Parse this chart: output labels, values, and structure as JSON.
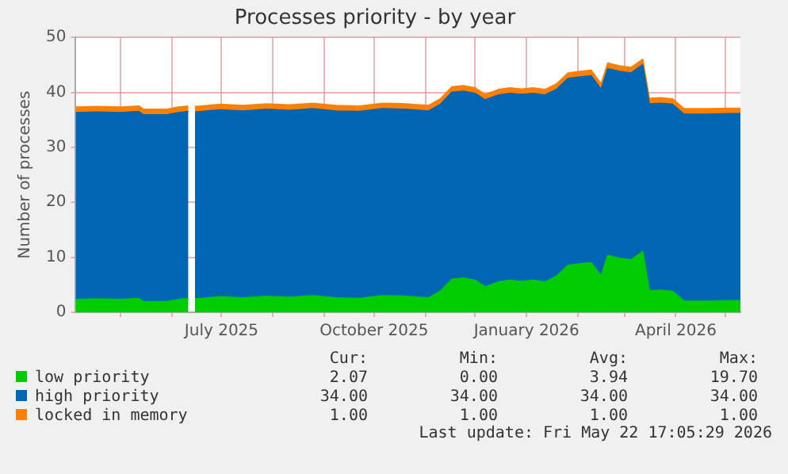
{
  "chart_data": {
    "type": "area",
    "title": "Processes priority - by year",
    "ylabel": "Number of processes",
    "stacked": true,
    "grid": true,
    "legend": "bottom",
    "line_style": "solid",
    "marker": "none",
    "xlim": [
      "2025-04-04",
      "2026-05-10"
    ],
    "xticks": [
      {
        "value": "2025-05-01",
        "label": null
      },
      {
        "value": "2025-06-01",
        "label": null
      },
      {
        "value": "2025-07-01",
        "label": "July 2025"
      },
      {
        "value": "2025-08-01",
        "label": null
      },
      {
        "value": "2025-09-01",
        "label": null
      },
      {
        "value": "2025-10-01",
        "label": "October 2025"
      },
      {
        "value": "2025-11-01",
        "label": null
      },
      {
        "value": "2025-12-01",
        "label": null
      },
      {
        "value": "2026-01-01",
        "label": "January 2026"
      },
      {
        "value": "2026-02-01",
        "label": null
      },
      {
        "value": "2026-03-01",
        "label": null
      },
      {
        "value": "2026-04-01",
        "label": "April 2026"
      },
      {
        "value": "2026-05-01",
        "label": null
      }
    ],
    "ylim": [
      0,
      50
    ],
    "yticks": [
      0,
      10,
      20,
      30,
      40,
      50
    ],
    "x": [
      "2025-04-04",
      "2025-04-17",
      "2025-05-01",
      "2025-05-12",
      "2025-05-15",
      "2025-05-29",
      "2025-06-05",
      "2025-06-11",
      "2025-06-13",
      "2025-06-15",
      "2025-06-30",
      "2025-07-14",
      "2025-07-28",
      "2025-08-11",
      "2025-08-25",
      "2025-09-08",
      "2025-09-22",
      "2025-10-06",
      "2025-10-20",
      "2025-11-03",
      "2025-11-10",
      "2025-11-17",
      "2025-11-24",
      "2025-12-01",
      "2025-12-07",
      "2025-12-15",
      "2025-12-22",
      "2025-12-29",
      "2026-01-05",
      "2026-01-12",
      "2026-01-19",
      "2026-01-26",
      "2026-02-02",
      "2026-02-09",
      "2026-02-15",
      "2026-02-19",
      "2026-02-26",
      "2026-03-05",
      "2026-03-12",
      "2026-03-16",
      "2026-03-23",
      "2026-03-30",
      "2026-04-06",
      "2026-04-20",
      "2026-05-04",
      "2026-05-10"
    ],
    "series": [
      {
        "name": "low priority",
        "color": "#00cc00",
        "values": [
          2.3,
          2.4,
          2.3,
          2.5,
          1.9,
          1.9,
          2.3,
          2.5,
          null,
          2.4,
          2.8,
          2.6,
          2.9,
          2.7,
          3.0,
          2.6,
          2.5,
          3.0,
          2.9,
          2.6,
          3.8,
          6.0,
          6.2,
          5.8,
          4.6,
          5.5,
          5.8,
          5.6,
          5.8,
          5.5,
          6.5,
          8.5,
          8.8,
          9.0,
          6.5,
          10.3,
          9.8,
          9.5,
          11.0,
          3.9,
          4.0,
          3.8,
          2.0,
          2.0,
          2.1,
          2.1
        ]
      },
      {
        "name": "high priority",
        "color": "#0066b3",
        "values": [
          34,
          34,
          34,
          34,
          34,
          34,
          34,
          34,
          null,
          34,
          34,
          34,
          34,
          34,
          34,
          34,
          34,
          34,
          34,
          34,
          34,
          34,
          34,
          34,
          34,
          34,
          34,
          34,
          34,
          34,
          34,
          34,
          34,
          34,
          34,
          34,
          34,
          34,
          34,
          34,
          34,
          34,
          34,
          34,
          34,
          34
        ]
      },
      {
        "name": "locked in memory",
        "color": "#ff8000",
        "values": [
          1,
          1,
          1,
          1,
          1,
          1,
          1,
          1,
          null,
          1,
          1,
          1,
          1,
          1,
          1,
          1,
          1,
          1,
          1,
          1,
          1,
          1,
          1,
          1,
          1,
          1,
          1,
          1,
          1,
          1,
          1,
          1,
          1,
          1,
          1,
          1,
          1,
          1,
          1,
          1,
          1,
          1,
          1,
          1,
          1,
          1
        ]
      }
    ],
    "annotations": [
      "Cur:",
      "Min:",
      "Avg:",
      "Max:",
      "2.07",
      "0.00",
      "3.94",
      "19.70",
      "34.00",
      "34.00",
      "34.00",
      "34.00",
      "1.00",
      "1.00",
      "1.00",
      "1.00",
      "Last update: Fri May 22 17:05:29 2026"
    ]
  }
}
